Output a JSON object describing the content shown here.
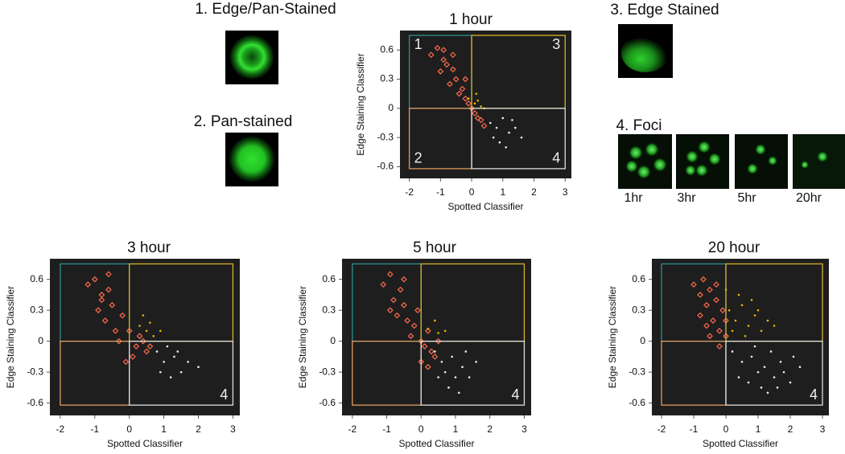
{
  "panels": {
    "edge_pan": "1. Edge/Pan-Stained",
    "pan": "2. Pan-stained",
    "edge": "3. Edge Stained",
    "foci": "4. Foci",
    "foci_times": [
      "1hr",
      "3hr",
      "5hr",
      "20hr"
    ]
  },
  "chart_data": [
    {
      "type": "scatter",
      "title": "1 hour",
      "xlabel": "Spotted Classifier",
      "ylabel": "Edge Staining Classifier",
      "xlim": [
        -2.3,
        3.2
      ],
      "ylim": [
        -0.72,
        0.8
      ],
      "xticks": [
        -2,
        -1,
        0,
        1,
        2,
        3
      ],
      "yticks": [
        -0.6,
        -0.3,
        0,
        0.3,
        0.6
      ],
      "background": "#1e1e1e",
      "regions": [
        {
          "label": "1",
          "color": "#2a9090",
          "x": [
            -2,
            0
          ],
          "y": [
            0,
            0.75
          ]
        },
        {
          "label": "3",
          "color": "#d9b02a",
          "x": [
            0,
            3
          ],
          "y": [
            0,
            0.75
          ]
        },
        {
          "label": "2",
          "color": "#e09a5a",
          "x": [
            -2,
            0
          ],
          "y": [
            -0.62,
            0
          ]
        },
        {
          "label": "4",
          "color": "#dddddd",
          "x": [
            0,
            3
          ],
          "y": [
            -0.62,
            0
          ]
        }
      ],
      "series": [
        {
          "color": "#ff6a4d",
          "marker": "diamond",
          "x": [
            -1.3,
            -1.1,
            -0.9,
            -1.0,
            -0.8,
            -0.6,
            -0.7,
            -0.5,
            -0.4,
            -0.3,
            -0.2,
            -0.1,
            0.0,
            0.1,
            0.2,
            0.3,
            0.4,
            -0.9,
            -0.6,
            -0.2
          ],
          "y": [
            0.55,
            0.62,
            0.5,
            0.38,
            0.45,
            0.4,
            0.25,
            0.3,
            0.15,
            0.2,
            0.1,
            0.05,
            0.0,
            -0.05,
            -0.1,
            -0.12,
            -0.18,
            0.6,
            0.55,
            0.3
          ]
        },
        {
          "color": "#e8b800",
          "marker": "dot",
          "x": [
            -0.1,
            0.1,
            0.2,
            0.3,
            0.15,
            0.4
          ],
          "y": [
            0.1,
            0.05,
            0.08,
            0.02,
            0.15,
            0.0
          ]
        },
        {
          "color": "#eeeeee",
          "marker": "dot",
          "x": [
            0.6,
            0.8,
            1.0,
            1.2,
            0.9,
            1.4,
            1.1,
            0.7,
            1.6,
            1.3
          ],
          "y": [
            -0.15,
            -0.2,
            -0.1,
            -0.25,
            -0.35,
            -0.2,
            -0.4,
            -0.3,
            -0.3,
            -0.12
          ]
        }
      ]
    },
    {
      "type": "scatter",
      "title": "3 hour",
      "xlabel": "Spotted Classifier",
      "ylabel": "Edge Staining Classifier",
      "xlim": [
        -2.3,
        3.2
      ],
      "ylim": [
        -0.72,
        0.8
      ],
      "xticks": [
        -2,
        -1,
        0,
        1,
        2,
        3
      ],
      "yticks": [
        -0.6,
        -0.3,
        0,
        0.3,
        0.6
      ],
      "background": "#1e1e1e",
      "regions": [
        {
          "color": "#2a9090",
          "x": [
            -2,
            0
          ],
          "y": [
            0,
            0.75
          ]
        },
        {
          "color": "#d9b02a",
          "x": [
            0,
            3
          ],
          "y": [
            0,
            0.75
          ]
        },
        {
          "color": "#e09a5a",
          "x": [
            -2,
            0
          ],
          "y": [
            -0.62,
            0
          ]
        },
        {
          "label": "4",
          "color": "#dddddd",
          "x": [
            0,
            3
          ],
          "y": [
            -0.62,
            0
          ]
        }
      ],
      "series": [
        {
          "color": "#ff6a4d",
          "marker": "diamond",
          "x": [
            -1.2,
            -1.0,
            -0.8,
            -0.9,
            -0.6,
            -0.7,
            -0.5,
            -0.4,
            -0.2,
            -0.3,
            0.0,
            0.2,
            0.3,
            0.5,
            0.1,
            -0.1,
            0.4,
            -0.6,
            0.6,
            -0.8
          ],
          "y": [
            0.55,
            0.6,
            0.45,
            0.3,
            0.5,
            0.2,
            0.35,
            0.1,
            0.25,
            0.0,
            0.1,
            -0.05,
            0.05,
            -0.1,
            -0.15,
            -0.2,
            0.0,
            0.65,
            -0.05,
            0.4
          ]
        },
        {
          "color": "#e8b800",
          "marker": "dot",
          "x": [
            0.3,
            0.5,
            0.7,
            0.4,
            0.6,
            0.9
          ],
          "y": [
            0.15,
            0.1,
            0.05,
            0.25,
            0.18,
            0.1
          ]
        },
        {
          "color": "#eeeeee",
          "marker": "dot",
          "x": [
            0.8,
            1.0,
            1.3,
            1.5,
            1.2,
            1.7,
            2.0,
            0.9,
            1.4,
            1.1
          ],
          "y": [
            -0.1,
            -0.2,
            -0.15,
            -0.3,
            -0.35,
            -0.2,
            -0.25,
            -0.3,
            -0.1,
            -0.05
          ]
        }
      ]
    },
    {
      "type": "scatter",
      "title": "5 hour",
      "xlabel": "Spotted Classifier",
      "ylabel": "Edge Staining Classifier",
      "xlim": [
        -2.3,
        3.2
      ],
      "ylim": [
        -0.72,
        0.8
      ],
      "xticks": [
        -2,
        -1,
        0,
        1,
        2,
        3
      ],
      "yticks": [
        -0.6,
        -0.3,
        0,
        0.3,
        0.6
      ],
      "background": "#1e1e1e",
      "regions": [
        {
          "color": "#2a9090",
          "x": [
            -2,
            0
          ],
          "y": [
            0,
            0.75
          ]
        },
        {
          "color": "#d9b02a",
          "x": [
            0,
            3
          ],
          "y": [
            0,
            0.75
          ]
        },
        {
          "color": "#e09a5a",
          "x": [
            -2,
            0
          ],
          "y": [
            -0.62,
            0
          ]
        },
        {
          "label": "4",
          "color": "#dddddd",
          "x": [
            0,
            3
          ],
          "y": [
            -0.62,
            0
          ]
        }
      ],
      "series": [
        {
          "color": "#ff6a4d",
          "marker": "diamond",
          "x": [
            -1.1,
            -0.9,
            -0.8,
            -0.6,
            -0.7,
            -0.5,
            -0.4,
            -0.3,
            -0.2,
            0.0,
            0.1,
            0.2,
            0.3,
            -0.1,
            0.4,
            -0.5,
            0.5,
            -0.9,
            0.0,
            0.2
          ],
          "y": [
            0.55,
            0.65,
            0.4,
            0.5,
            0.25,
            0.35,
            0.2,
            0.05,
            0.15,
            0.0,
            -0.05,
            0.1,
            -0.1,
            0.3,
            -0.15,
            0.6,
            0.0,
            0.3,
            -0.2,
            -0.25
          ]
        },
        {
          "color": "#e8b800",
          "marker": "dot",
          "x": [
            0.2,
            0.4,
            0.5,
            0.7
          ],
          "y": [
            0.12,
            0.2,
            0.08,
            0.1
          ]
        },
        {
          "color": "#eeeeee",
          "marker": "dot",
          "x": [
            0.4,
            0.6,
            0.7,
            0.9,
            1.0,
            1.2,
            0.8,
            1.1,
            1.4,
            0.5,
            1.3,
            1.6
          ],
          "y": [
            -0.1,
            -0.2,
            -0.3,
            -0.15,
            -0.35,
            -0.25,
            -0.45,
            -0.5,
            -0.35,
            -0.35,
            -0.1,
            -0.2
          ]
        }
      ]
    },
    {
      "type": "scatter",
      "title": "20 hour",
      "xlabel": "Spotted Classifier",
      "ylabel": "Edge Staining Classifier",
      "xlim": [
        -2.3,
        3.2
      ],
      "ylim": [
        -0.72,
        0.8
      ],
      "xticks": [
        -2,
        -1,
        0,
        1,
        2,
        3
      ],
      "yticks": [
        -0.6,
        -0.3,
        0,
        0.3,
        0.6
      ],
      "background": "#1e1e1e",
      "regions": [
        {
          "color": "#2a9090",
          "x": [
            -2,
            0
          ],
          "y": [
            0,
            0.75
          ]
        },
        {
          "color": "#d9b02a",
          "x": [
            0,
            3
          ],
          "y": [
            0,
            0.75
          ]
        },
        {
          "color": "#e09a5a",
          "x": [
            -2,
            0
          ],
          "y": [
            -0.62,
            0
          ]
        },
        {
          "label": "4",
          "color": "#dddddd",
          "x": [
            0,
            3
          ],
          "y": [
            -0.62,
            0
          ]
        }
      ],
      "series": [
        {
          "color": "#ff6a4d",
          "marker": "diamond",
          "x": [
            -1.0,
            -0.8,
            -0.7,
            -0.6,
            -0.5,
            -0.4,
            -0.3,
            -0.2,
            -0.1,
            0.0,
            -0.5,
            -0.8,
            -0.3,
            -0.6,
            0.0,
            -0.2
          ],
          "y": [
            0.55,
            0.45,
            0.6,
            0.35,
            0.5,
            0.2,
            0.4,
            0.1,
            0.3,
            0.05,
            0.05,
            0.25,
            0.55,
            0.15,
            0.2,
            -0.05
          ]
        },
        {
          "color": "#e8b800",
          "marker": "dot",
          "x": [
            0.1,
            0.3,
            0.5,
            0.7,
            0.9,
            1.1,
            1.3,
            0.4,
            0.6,
            0.8,
            1.0,
            0.2,
            1.5,
            0.0
          ],
          "y": [
            0.3,
            0.2,
            0.35,
            0.15,
            0.25,
            0.1,
            0.2,
            0.45,
            0.05,
            0.4,
            0.3,
            0.1,
            0.15,
            0.5
          ]
        },
        {
          "color": "#eeeeee",
          "marker": "dot",
          "x": [
            0.2,
            0.5,
            0.8,
            1.0,
            1.2,
            1.5,
            1.7,
            2.0,
            0.7,
            1.1,
            1.4,
            1.8,
            2.3,
            0.4,
            0.9,
            1.3,
            1.6,
            2.1
          ],
          "y": [
            -0.1,
            -0.2,
            -0.15,
            -0.3,
            -0.25,
            -0.35,
            -0.2,
            -0.4,
            -0.4,
            -0.45,
            -0.1,
            -0.3,
            -0.25,
            -0.35,
            -0.05,
            -0.5,
            -0.45,
            -0.15
          ]
        }
      ]
    }
  ]
}
